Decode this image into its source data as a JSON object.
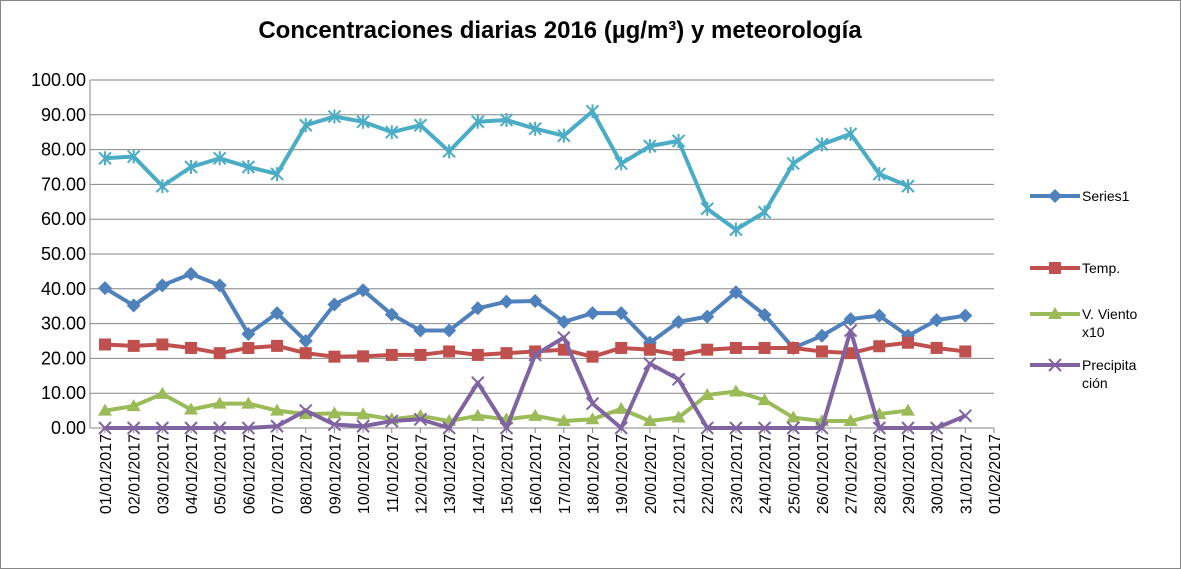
{
  "chart_data": {
    "type": "line",
    "title": "Concentraciones diarias  2016 (µg/m³) y meteorología",
    "categories": [
      "01/01/2017",
      "02/01/2017",
      "03/01/2017",
      "04/01/2017",
      "05/01/2017",
      "06/01/2017",
      "07/01/2017",
      "08/01/2017",
      "09/01/2017",
      "10/01/2017",
      "11/01/2017",
      "12/01/2017",
      "13/01/2017",
      "14/01/2017",
      "15/01/2017",
      "16/01/2017",
      "17/01/2017",
      "18/01/2017",
      "19/01/2017",
      "20/01/2017",
      "21/01/2017",
      "22/01/2017",
      "23/01/2017",
      "24/01/2017",
      "25/01/2017",
      "26/01/2017",
      "27/01/2017",
      "28/01/2017",
      "29/01/2017",
      "30/01/2017",
      "31/01/2017",
      "01/02/2017"
    ],
    "series": [
      {
        "name": "Series1",
        "color": "#4f81bd",
        "marker": "diamond",
        "values": [
          40.2,
          35.2,
          41,
          44.3,
          41,
          27,
          33,
          25,
          35.5,
          39.6,
          32.6,
          28,
          28,
          34.4,
          36.3,
          36.5,
          30.5,
          33,
          33,
          24.5,
          30.5,
          32,
          39,
          32.5,
          23,
          26.5,
          31.3,
          32.3,
          26.5,
          31,
          32.3,
          null
        ]
      },
      {
        "name": "Temp.",
        "color": "#c0504d",
        "marker": "square",
        "values": [
          24,
          23.6,
          24,
          23,
          21.5,
          23,
          23.6,
          21.5,
          20.5,
          20.6,
          21,
          21,
          22,
          21,
          21.5,
          22,
          22.5,
          20.5,
          23,
          22.5,
          21,
          22.5,
          23,
          23,
          23,
          22,
          21.5,
          23.5,
          24.5,
          23,
          22,
          null
        ]
      },
      {
        "name": "V. Viento x10",
        "color": "#9bbb59",
        "marker": "triangle",
        "values": [
          5,
          6.3,
          9.8,
          5.3,
          7,
          7,
          5,
          4,
          4.2,
          3.9,
          2.5,
          3.5,
          2,
          3.5,
          2.5,
          3.5,
          2,
          2.5,
          5.5,
          2,
          3,
          9.5,
          10.5,
          8,
          3,
          2,
          2,
          4,
          5,
          null,
          null,
          null
        ]
      },
      {
        "name": "Precipitación",
        "color": "#8064a2",
        "marker": "x",
        "values": [
          0,
          0,
          0,
          0,
          0,
          0,
          0.5,
          5,
          1,
          0.5,
          2,
          2.5,
          0,
          13,
          0,
          21,
          26,
          7,
          0,
          18.5,
          14,
          0,
          0,
          0,
          0,
          0,
          28,
          0,
          0,
          0,
          3.5,
          null
        ]
      },
      {
        "color": "#4bacc6",
        "marker": "star",
        "values": [
          77.5,
          78,
          69.5,
          75,
          77.5,
          75,
          73,
          87,
          89.5,
          88,
          85,
          87,
          79.5,
          88,
          88.5,
          86,
          84,
          91,
          76,
          81,
          82.5,
          63,
          57,
          62,
          76,
          81.5,
          84.5,
          73,
          69.5,
          null,
          null,
          null
        ]
      }
    ],
    "ylim": [
      0,
      100
    ],
    "yticks": [
      {
        "value": 0,
        "label": "0.00"
      },
      {
        "value": 10,
        "label": "10.00"
      },
      {
        "value": 20,
        "label": "20.00"
      },
      {
        "value": 30,
        "label": "30.00"
      },
      {
        "value": 40,
        "label": "40.00"
      },
      {
        "value": 50,
        "label": "50.00"
      },
      {
        "value": 60,
        "label": "60.00"
      },
      {
        "value": 70,
        "label": "70.00"
      },
      {
        "value": 80,
        "label": "80.00"
      },
      {
        "value": 90,
        "label": "90.00"
      },
      {
        "value": 100,
        "label": "100.00"
      }
    ],
    "grid": true,
    "legend": "right"
  }
}
